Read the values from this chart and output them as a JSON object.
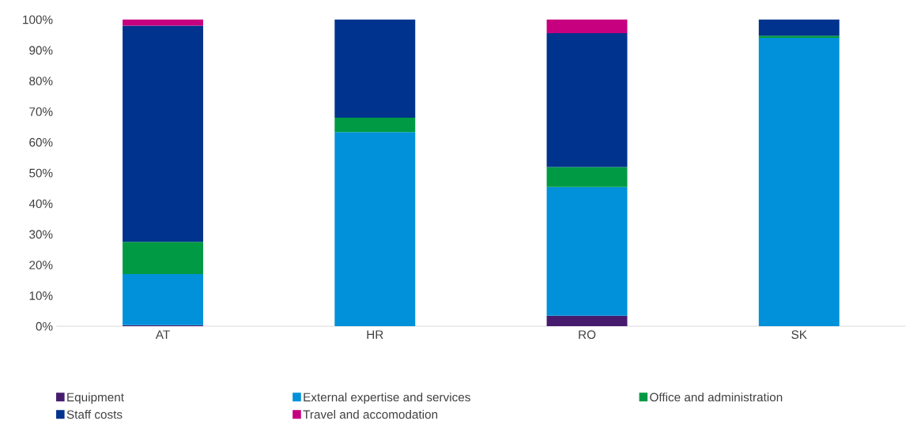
{
  "chart_data": {
    "type": "bar",
    "stacked": true,
    "categories": [
      "AT",
      "HR",
      "RO",
      "SK"
    ],
    "series": [
      {
        "name": "Equipment",
        "color": "#461b6e",
        "values": [
          0.3,
          0,
          3.4,
          0
        ]
      },
      {
        "name": "External expertise and services",
        "color": "#0091da",
        "values": [
          16.7,
          63.3,
          42.0,
          94.0
        ]
      },
      {
        "name": "Office and administration",
        "color": "#009a44",
        "values": [
          10.5,
          4.7,
          6.5,
          0.7
        ]
      },
      {
        "name": "Staff costs",
        "color": "#00338d",
        "values": [
          70.5,
          32.0,
          43.6,
          5.3
        ]
      },
      {
        "name": "Travel and accomodation",
        "color": "#c6007e",
        "values": [
          2.0,
          0,
          4.5,
          0
        ]
      }
    ],
    "ylim": [
      0,
      100
    ],
    "yticks": [
      {
        "value": 0,
        "label": "0%"
      },
      {
        "value": 10,
        "label": "10%"
      },
      {
        "value": 20,
        "label": "20%"
      },
      {
        "value": 30,
        "label": "30%"
      },
      {
        "value": 40,
        "label": "40%"
      },
      {
        "value": 50,
        "label": "50%"
      },
      {
        "value": 60,
        "label": "60%"
      },
      {
        "value": 70,
        "label": "70%"
      },
      {
        "value": 80,
        "label": "80%"
      },
      {
        "value": 90,
        "label": "90%"
      },
      {
        "value": 100,
        "label": "100%"
      }
    ],
    "grid": false,
    "legend": "bottom"
  }
}
